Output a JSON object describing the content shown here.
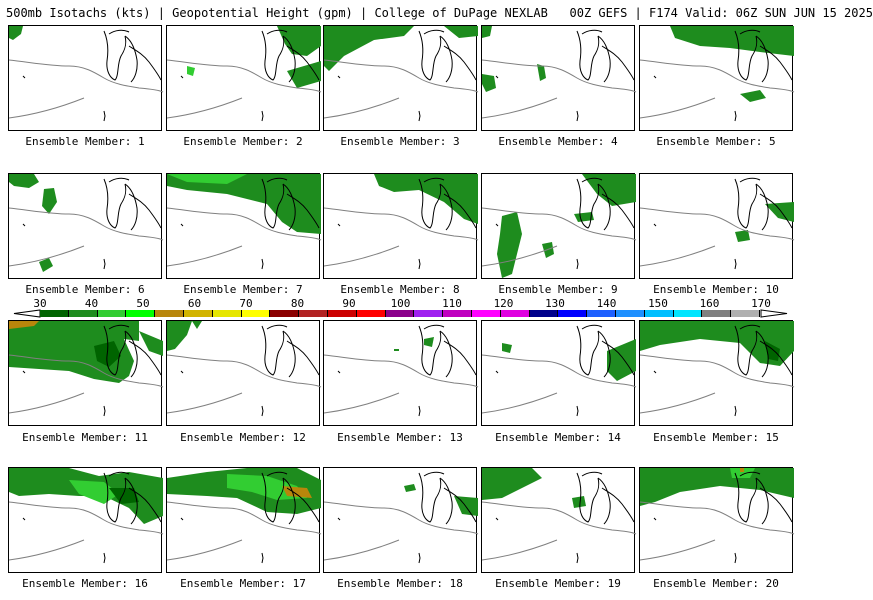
{
  "title": "500mb Isotachs (kts) | Geopotential Height (gpm) | College of DuPage NEXLAB   00Z GEFS | F174 Valid: 06Z SUN JUN 15 2025",
  "panels": [
    {
      "label": "Ensemble Member: 1"
    },
    {
      "label": "Ensemble Member: 2"
    },
    {
      "label": "Ensemble Member: 3"
    },
    {
      "label": "Ensemble Member: 4"
    },
    {
      "label": "Ensemble Member: 5"
    },
    {
      "label": "Ensemble Member: 6"
    },
    {
      "label": "Ensemble Member: 7"
    },
    {
      "label": "Ensemble Member: 8"
    },
    {
      "label": "Ensemble Member: 9"
    },
    {
      "label": "Ensemble Member: 10"
    },
    {
      "label": "Ensemble Member: 11"
    },
    {
      "label": "Ensemble Member: 12"
    },
    {
      "label": "Ensemble Member: 13"
    },
    {
      "label": "Ensemble Member: 14"
    },
    {
      "label": "Ensemble Member: 15"
    },
    {
      "label": "Ensemble Member: 16"
    },
    {
      "label": "Ensemble Member: 17"
    },
    {
      "label": "Ensemble Member: 18"
    },
    {
      "label": "Ensemble Member: 19"
    },
    {
      "label": "Ensemble Member: 20"
    }
  ],
  "colorbar": {
    "labels": [
      "30",
      "40",
      "50",
      "60",
      "70",
      "80",
      "90",
      "100",
      "110",
      "120",
      "130",
      "140",
      "150",
      "160",
      "170"
    ],
    "colors": [
      "#006400",
      "#1e8c1e",
      "#32cd32",
      "#00ff00",
      "#b8860b",
      "#d2b400",
      "#e6e600",
      "#ffff00",
      "#8b0000",
      "#b22222",
      "#cc0000",
      "#ff0000",
      "#8b008b",
      "#a020f0",
      "#c000c0",
      "#ff00ff",
      "#e000e0",
      "#00008b",
      "#0000ff",
      "#1e60ff",
      "#1e90ff",
      "#00bfff",
      "#00e5ff",
      "#808080",
      "#b0b0b0"
    ]
  },
  "wind_colors": {
    "light": "#1e8c1e",
    "medium": "#32cd32",
    "dark": "#006400",
    "strong": "#b8860b"
  }
}
